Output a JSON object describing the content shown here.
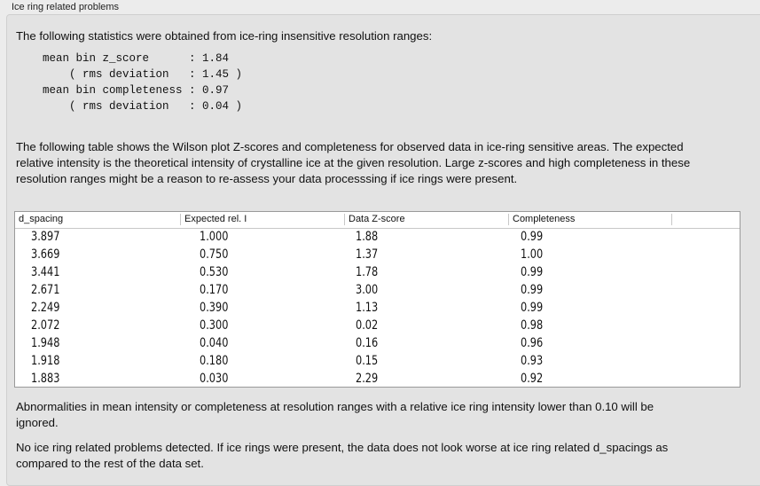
{
  "group_title": "Ice ring related problems",
  "intro": "The following statistics were obtained from ice-ring insensitive resolution ranges:",
  "stats": "mean bin z_score      : 1.84\n    ( rms deviation   : 1.45 )\nmean bin completeness : 0.97\n    ( rms deviation   : 0.04 )",
  "para2": "The following table shows the Wilson plot Z-scores and completeness for observed data in ice-ring sensitive areas. The expected relative intensity is the theoretical intensity of crystalline ice at the given resolution. Large z-scores and high completeness in these resolution ranges might be a reason to re-assess your data processsing if ice rings were present.",
  "table": {
    "columns": [
      "d_spacing",
      "Expected rel. I",
      "Data Z-score",
      "Completeness"
    ],
    "rows": [
      [
        "3.897",
        "1.000",
        "1.88",
        "0.99"
      ],
      [
        "3.669",
        "0.750",
        "1.37",
        "1.00"
      ],
      [
        "3.441",
        "0.530",
        "1.78",
        "0.99"
      ],
      [
        "2.671",
        "0.170",
        "3.00",
        "0.99"
      ],
      [
        "2.249",
        "0.390",
        "1.13",
        "0.99"
      ],
      [
        "2.072",
        "0.300",
        "0.02",
        "0.98"
      ],
      [
        "1.948",
        "0.040",
        "0.16",
        "0.96"
      ],
      [
        "1.918",
        "0.180",
        "0.15",
        "0.93"
      ],
      [
        "1.883",
        "0.030",
        "2.29",
        "0.92"
      ]
    ]
  },
  "para3": "Abnormalities in mean intensity or completeness at resolution ranges with a relative ice ring intensity lower than 0.10 will be ignored.",
  "para4": "No ice ring related problems detected. If ice rings were present, the data does not look worse at ice ring related d_spacings as compared to the rest of the data set."
}
